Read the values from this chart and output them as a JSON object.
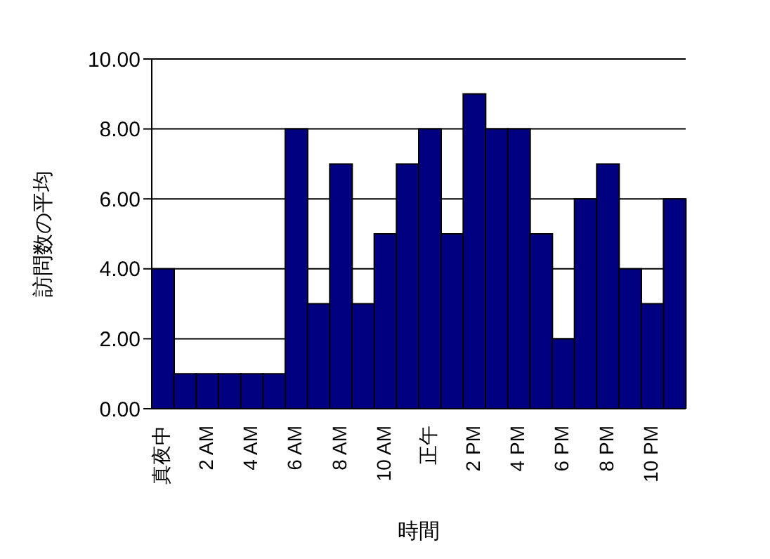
{
  "chart_data": {
    "type": "bar",
    "xlabel": "時間",
    "ylabel": "訪問数の平均",
    "categories": [
      "真夜中",
      null,
      "2 AM",
      null,
      "4 AM",
      null,
      "6 AM",
      null,
      "8 AM",
      null,
      "10 AM",
      null,
      "正午",
      null,
      "2 PM",
      null,
      "4 PM",
      null,
      "6 PM",
      null,
      "8 PM",
      null,
      "10 PM",
      null
    ],
    "values": [
      4,
      1,
      1,
      1,
      1,
      1,
      8,
      3,
      7,
      3,
      5,
      7,
      8,
      5,
      9,
      8,
      8,
      5,
      2,
      6,
      7,
      4,
      3,
      6
    ],
    "color": "#000080",
    "ylim": [
      0,
      10
    ],
    "yticks": [
      {
        "value": 0,
        "label": "0.00"
      },
      {
        "value": 2,
        "label": "2.00"
      },
      {
        "value": 4,
        "label": "4.00"
      },
      {
        "value": 6,
        "label": "6.00"
      },
      {
        "value": 8,
        "label": "8.00"
      },
      {
        "value": 10,
        "label": "10.00"
      }
    ],
    "grid": "y"
  }
}
